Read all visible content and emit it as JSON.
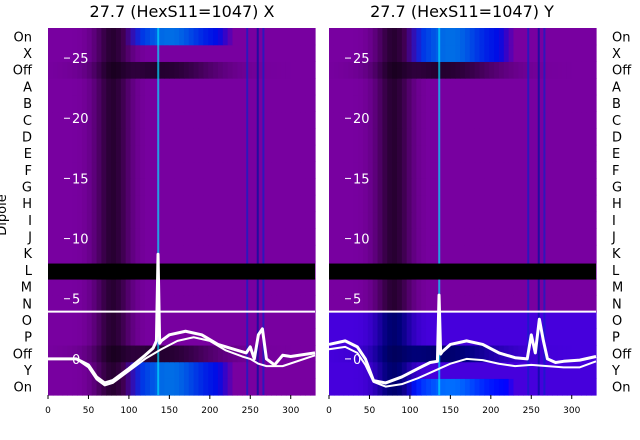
{
  "chart_data": [
    {
      "type": "heatmap",
      "title": "27.7 (HexS11=1047) X",
      "ylabel": "Dipole",
      "xlim": [
        0,
        330
      ],
      "xticks": [
        0,
        50,
        100,
        150,
        200,
        250,
        300
      ],
      "row_labels": [
        "On",
        "X",
        "Off",
        "A",
        "B",
        "C",
        "D",
        "E",
        "F",
        "G",
        "H",
        "I",
        "J",
        "K",
        "L",
        "M",
        "N",
        "O",
        "P",
        "Off",
        "Y",
        "On"
      ],
      "overlay_yticks": [
        0,
        5,
        10,
        15,
        20,
        25
      ],
      "overlay_ylim": [
        -3,
        27.5
      ],
      "series": [
        {
          "name": "",
          "color": "#ffffff",
          "x": [
            0,
            20,
            35,
            50,
            60,
            70,
            80,
            100,
            120,
            130,
            134,
            136,
            138,
            140,
            150,
            170,
            190,
            210,
            230,
            245,
            250,
            255,
            260,
            265,
            270,
            280,
            290,
            300,
            330
          ],
          "y": [
            0,
            0,
            0,
            -0.5,
            -1.5,
            -2,
            -1.8,
            -0.8,
            0.3,
            0.9,
            1.5,
            8.7,
            1.3,
            1.5,
            2.0,
            2.3,
            2.0,
            1.2,
            0.8,
            0.5,
            1,
            0,
            2,
            2.5,
            0,
            -0.5,
            0.3,
            0.2,
            0.5
          ]
        },
        {
          "name": "",
          "color": "#ffffff",
          "x": [
            0,
            20,
            35,
            50,
            60,
            70,
            80,
            100,
            120,
            140,
            160,
            180,
            200,
            220,
            240,
            250,
            260,
            270,
            290,
            330
          ],
          "y": [
            0,
            0,
            0,
            -0.7,
            -1.7,
            -2.2,
            -2.0,
            -1.0,
            0,
            0.8,
            1.5,
            1.8,
            1.5,
            0.7,
            0.2,
            0,
            -0.4,
            -0.6,
            -0.6,
            0.3
          ]
        }
      ]
    },
    {
      "type": "heatmap",
      "title": "27.7 (HexS11=1047) Y",
      "xlim": [
        0,
        330
      ],
      "xticks": [
        0,
        50,
        100,
        150,
        200,
        250,
        300
      ],
      "row_labels": [
        "On",
        "X",
        "Off",
        "A",
        "B",
        "C",
        "D",
        "E",
        "F",
        "G",
        "H",
        "I",
        "J",
        "K",
        "L",
        "M",
        "N",
        "O",
        "P",
        "Off",
        "Y",
        "On"
      ],
      "overlay_yticks": [
        0,
        5,
        10,
        15,
        20,
        25
      ],
      "overlay_ylim": [
        -3,
        27.5
      ],
      "series": [
        {
          "name": "",
          "color": "#ffffff",
          "x": [
            0,
            20,
            35,
            45,
            55,
            70,
            90,
            110,
            125,
            134,
            136,
            138,
            140,
            150,
            170,
            190,
            210,
            230,
            245,
            250,
            255,
            260,
            265,
            270,
            280,
            290,
            310,
            330
          ],
          "y": [
            1.2,
            1.5,
            1,
            0,
            -1.8,
            -2,
            -1.5,
            -0.8,
            -0.3,
            -0.2,
            5.3,
            0.4,
            0.6,
            1.2,
            1.5,
            1.2,
            0.5,
            0.1,
            0,
            2,
            0.5,
            3.3,
            1.5,
            0,
            -0.3,
            -0.2,
            -0.1,
            0.2
          ]
        },
        {
          "name": "",
          "color": "#ffffff",
          "x": [
            0,
            20,
            35,
            45,
            55,
            70,
            90,
            110,
            130,
            150,
            170,
            190,
            210,
            230,
            250,
            270,
            290,
            310,
            330
          ],
          "y": [
            0.8,
            1.0,
            0.5,
            -0.5,
            -1.9,
            -2.3,
            -2.1,
            -1.6,
            -1.0,
            -0.4,
            0,
            -0.1,
            -0.4,
            -0.6,
            -0.5,
            -0.6,
            -0.7,
            -0.7,
            -0.2
          ]
        }
      ]
    }
  ]
}
